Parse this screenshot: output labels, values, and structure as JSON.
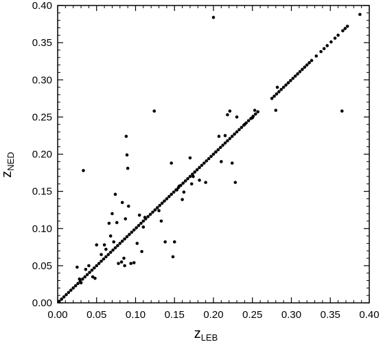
{
  "chart_data": {
    "type": "scatter",
    "title": "",
    "xlabel": {
      "base": "z",
      "sub": "LEB"
    },
    "ylabel": {
      "base": "z",
      "sub": "NED"
    },
    "xlim": [
      0,
      0.4
    ],
    "ylim": [
      0,
      0.4
    ],
    "xticks": [
      "0.00",
      "0.05",
      "0.10",
      "0.15",
      "0.20",
      "0.25",
      "0.30",
      "0.35",
      "0.40"
    ],
    "yticks": [
      "0.00",
      "0.05",
      "0.10",
      "0.15",
      "0.20",
      "0.25",
      "0.30",
      "0.35",
      "0.40"
    ],
    "grid": false,
    "marker_color": "#000000",
    "series": [
      {
        "points_one_to_one": [
          0.002,
          0.005,
          0.008,
          0.011,
          0.014,
          0.017,
          0.02,
          0.023,
          0.026,
          0.029,
          0.032,
          0.035,
          0.038,
          0.041,
          0.044,
          0.047,
          0.05,
          0.053,
          0.056,
          0.059,
          0.062,
          0.065,
          0.068,
          0.071,
          0.074,
          0.077,
          0.08,
          0.083,
          0.086,
          0.089,
          0.092,
          0.095,
          0.098,
          0.101,
          0.104,
          0.107,
          0.11,
          0.113,
          0.116,
          0.119,
          0.122,
          0.125,
          0.128,
          0.131,
          0.134,
          0.137,
          0.14,
          0.143,
          0.146,
          0.149,
          0.152,
          0.155,
          0.158,
          0.161,
          0.164,
          0.167,
          0.17,
          0.173,
          0.176,
          0.179,
          0.182,
          0.185,
          0.188,
          0.191,
          0.194,
          0.197,
          0.2,
          0.203,
          0.206,
          0.209,
          0.212,
          0.215,
          0.218,
          0.221,
          0.224,
          0.227,
          0.23,
          0.233,
          0.236,
          0.239,
          0.242,
          0.245,
          0.248,
          0.251,
          0.254,
          0.257,
          0.275,
          0.278,
          0.281,
          0.284,
          0.287,
          0.29,
          0.293,
          0.296,
          0.299,
          0.302,
          0.305,
          0.308,
          0.311,
          0.314,
          0.317,
          0.32,
          0.323,
          0.326,
          0.332,
          0.338,
          0.342,
          0.346,
          0.351,
          0.356,
          0.36,
          0.366,
          0.369,
          0.372,
          0.388
        ],
        "points": [
          [
            0.025,
            0.048
          ],
          [
            0.028,
            0.032
          ],
          [
            0.03,
            0.027
          ],
          [
            0.033,
            0.178
          ],
          [
            0.036,
            0.045
          ],
          [
            0.04,
            0.05
          ],
          [
            0.045,
            0.035
          ],
          [
            0.048,
            0.033
          ],
          [
            0.05,
            0.078
          ],
          [
            0.056,
            0.065
          ],
          [
            0.06,
            0.078
          ],
          [
            0.062,
            0.072
          ],
          [
            0.066,
            0.107
          ],
          [
            0.068,
            0.09
          ],
          [
            0.07,
            0.12
          ],
          [
            0.072,
            0.082
          ],
          [
            0.074,
            0.146
          ],
          [
            0.076,
            0.108
          ],
          [
            0.078,
            0.053
          ],
          [
            0.082,
            0.055
          ],
          [
            0.083,
            0.135
          ],
          [
            0.085,
            0.06
          ],
          [
            0.086,
            0.05
          ],
          [
            0.087,
            0.113
          ],
          [
            0.088,
            0.224
          ],
          [
            0.089,
            0.199
          ],
          [
            0.09,
            0.181
          ],
          [
            0.091,
            0.13
          ],
          [
            0.094,
            0.053
          ],
          [
            0.098,
            0.054
          ],
          [
            0.102,
            0.08
          ],
          [
            0.105,
            0.118
          ],
          [
            0.108,
            0.069
          ],
          [
            0.11,
            0.102
          ],
          [
            0.112,
            0.115
          ],
          [
            0.124,
            0.258
          ],
          [
            0.13,
            0.124
          ],
          [
            0.133,
            0.11
          ],
          [
            0.138,
            0.082
          ],
          [
            0.146,
            0.188
          ],
          [
            0.148,
            0.062
          ],
          [
            0.15,
            0.082
          ],
          [
            0.153,
            0.152
          ],
          [
            0.156,
            0.157
          ],
          [
            0.16,
            0.139
          ],
          [
            0.162,
            0.149
          ],
          [
            0.17,
            0.195
          ],
          [
            0.172,
            0.16
          ],
          [
            0.174,
            0.17
          ],
          [
            0.182,
            0.165
          ],
          [
            0.19,
            0.162
          ],
          [
            0.2,
            0.384
          ],
          [
            0.203,
            0.203
          ],
          [
            0.207,
            0.224
          ],
          [
            0.21,
            0.19
          ],
          [
            0.215,
            0.225
          ],
          [
            0.218,
            0.253
          ],
          [
            0.221,
            0.258
          ],
          [
            0.224,
            0.188
          ],
          [
            0.228,
            0.162
          ],
          [
            0.23,
            0.25
          ],
          [
            0.24,
            0.24
          ],
          [
            0.25,
            0.249
          ],
          [
            0.253,
            0.259
          ],
          [
            0.28,
            0.259
          ],
          [
            0.282,
            0.29
          ],
          [
            0.365,
            0.258
          ]
        ]
      }
    ]
  }
}
